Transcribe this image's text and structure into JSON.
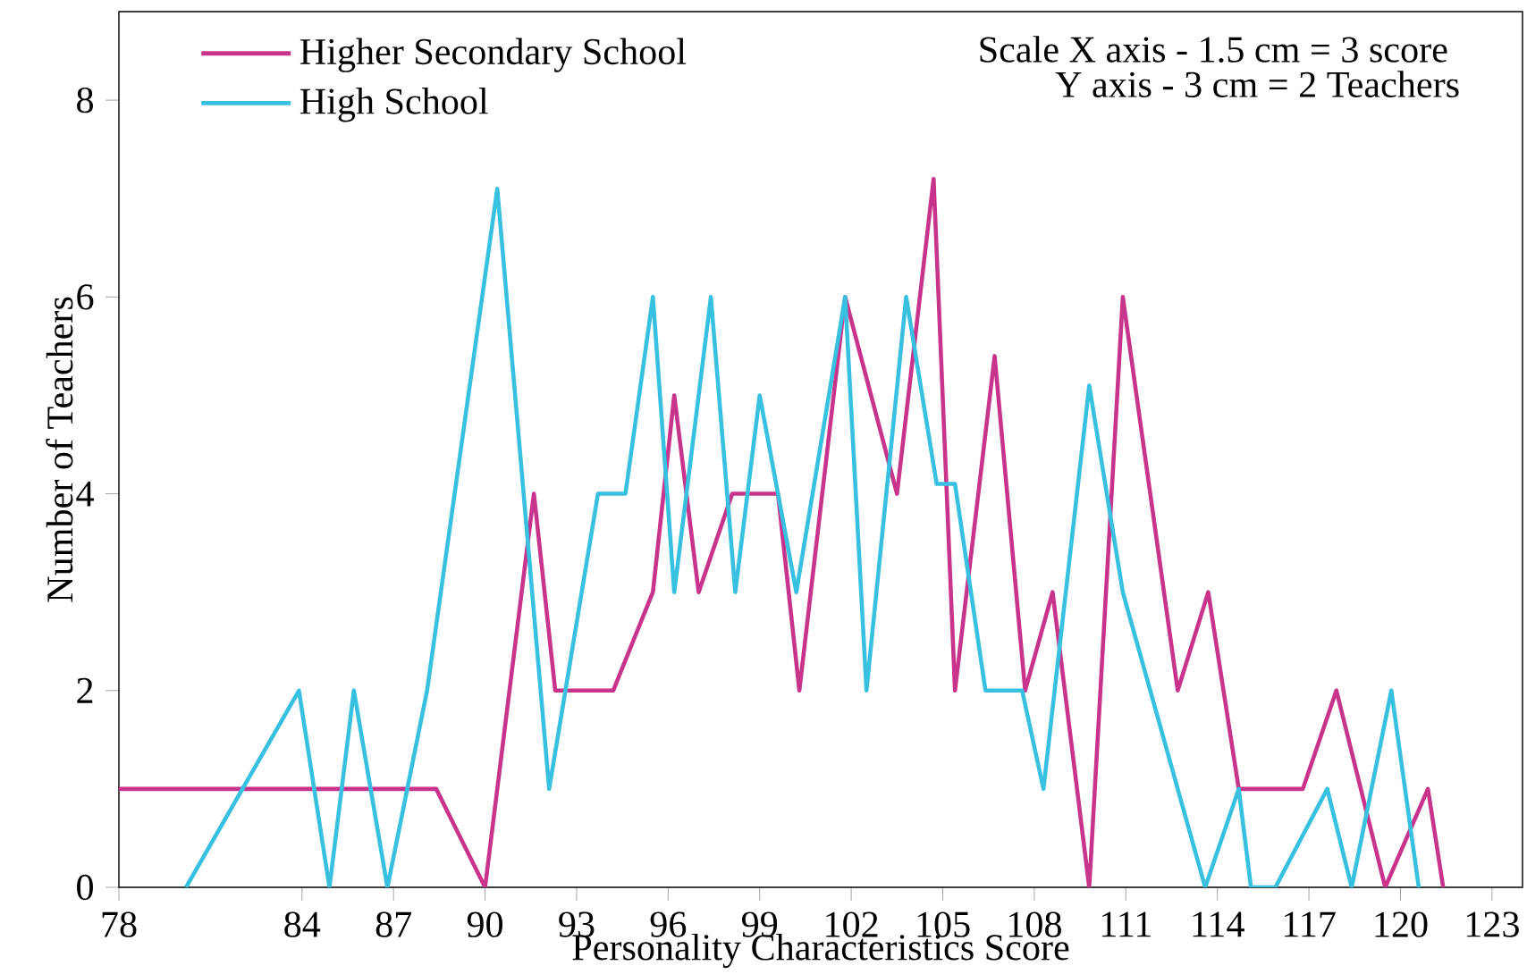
{
  "chart_data": {
    "type": "line",
    "xlabel": "Personality Characteristics Score",
    "ylabel": "Number of Teachers",
    "xlim": [
      78,
      124
    ],
    "ylim": [
      0,
      8.9
    ],
    "xticks": [
      78,
      84,
      87,
      90,
      93,
      96,
      99,
      102,
      105,
      108,
      111,
      114,
      117,
      120,
      123
    ],
    "yticks": [
      0,
      2,
      4,
      6,
      8
    ],
    "legend": "top left",
    "grid": false,
    "marker": "none",
    "line_style": "solid",
    "annotations": [
      "Scale  X axis - 1.5 cm = 3 score",
      "Y axis - 3 cm = 2 Teachers"
    ],
    "series": [
      {
        "name": "Higher Secondary School",
        "color": "#c8348c",
        "x": [
          78,
          88.4,
          90,
          91.6,
          92.3,
          94.2,
          95.5,
          96.2,
          97,
          98.1,
          99.6,
          100.3,
          101.8,
          103.5,
          104.7,
          105.4,
          106.7,
          107.7,
          108.6,
          109.8,
          110.9,
          112.7,
          113.7,
          114.7,
          116.8,
          117.9,
          119.5,
          120.9,
          121.4
        ],
        "values": [
          1,
          1,
          0,
          4,
          2,
          2,
          3,
          5,
          3,
          4,
          4,
          2,
          6,
          4,
          7.2,
          2,
          5.4,
          2,
          3,
          0,
          6,
          2,
          3,
          1,
          1,
          2,
          0,
          1,
          0
        ]
      },
      {
        "name": "High School",
        "color": "#38c0e0",
        "x": [
          80.2,
          83.9,
          84.9,
          85.7,
          86.8,
          88.1,
          90.4,
          92.1,
          93.7,
          94.6,
          95.5,
          96.2,
          97.4,
          98.2,
          99.0,
          100.2,
          101.8,
          102.5,
          103.8,
          104.8,
          105.4,
          106.4,
          107.6,
          108.3,
          109.8,
          110.9,
          113.6,
          114.7,
          115.1,
          115.9,
          117.6,
          118.4,
          119.7,
          120.6
        ],
        "values": [
          0,
          2,
          0,
          2,
          0,
          2,
          7.1,
          1,
          4,
          4,
          6,
          3,
          6,
          3,
          5,
          3,
          6,
          2,
          6,
          4.1,
          4.1,
          2,
          2,
          1,
          5.1,
          3,
          0,
          1,
          0,
          0,
          1,
          0,
          2,
          0
        ]
      }
    ]
  }
}
